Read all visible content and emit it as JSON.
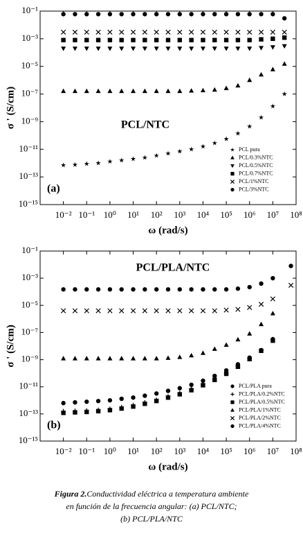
{
  "chart_data": [
    {
      "type": "scatter",
      "annotation": "PCL/NTC",
      "label": "(a)",
      "xlabel": "ω (rad/s)",
      "ylabel": "σ ' (S/cm)",
      "log_x": true,
      "log_y": true,
      "legend": "lower right",
      "xlim": [
        0.001,
        100000000
      ],
      "ylim": [
        1e-15,
        0.1
      ],
      "xticks": [
        {
          "value": 0.01,
          "label": "10⁻²"
        },
        {
          "value": 0.1,
          "label": "10⁻¹"
        },
        {
          "value": 1,
          "label": "10⁰"
        },
        {
          "value": 10,
          "label": "10¹"
        },
        {
          "value": 100,
          "label": "10²"
        },
        {
          "value": 1000,
          "label": "10³"
        },
        {
          "value": 10000,
          "label": "10⁴"
        },
        {
          "value": 100000,
          "label": "10⁵"
        },
        {
          "value": 1000000,
          "label": "10⁶"
        },
        {
          "value": 10000000,
          "label": "10⁷"
        },
        {
          "value": 100000000,
          "label": "10⁸"
        }
      ],
      "yticks": [
        {
          "value": 1e-15,
          "label": "10⁻¹⁵"
        },
        {
          "value": 1e-13,
          "label": "10⁻¹³"
        },
        {
          "value": 1e-11,
          "label": "10⁻¹¹"
        },
        {
          "value": 1e-09,
          "label": "10⁻⁹"
        },
        {
          "value": 1e-07,
          "label": "10⁻⁷"
        },
        {
          "value": 1e-05,
          "label": "10⁻⁵"
        },
        {
          "value": 0.001,
          "label": "10⁻³"
        },
        {
          "value": 0.1,
          "label": "10⁻¹"
        }
      ],
      "x": [
        0.01,
        0.0316,
        0.1,
        0.316,
        1,
        3.16,
        10,
        31.6,
        100,
        316,
        1000,
        3162,
        10000,
        31623,
        100000,
        316228,
        1000000,
        3162278,
        10000000,
        31622777
      ],
      "series": [
        {
          "name": "PCL pura",
          "marker": "star",
          "color": "#000000",
          "values": [
            7.1e-13,
            7.6e-13,
            8.9e-13,
            1e-12,
            1.3e-12,
            1.6e-12,
            2e-12,
            2.5e-12,
            3.5e-12,
            5e-12,
            7.1e-12,
            1e-11,
            1.6e-11,
            2.8e-11,
            5.6e-11,
            1.4e-10,
            4.5e-10,
            2e-09,
            1.3e-08,
            1e-07
          ]
        },
        {
          "name": "PCL/0.3%NTC",
          "marker": "triangle-up",
          "color": "#000000",
          "values": [
            1.6e-07,
            1.6e-07,
            1.6e-07,
            1.6e-07,
            1.6e-07,
            1.6e-07,
            1.6e-07,
            1.6e-07,
            1.6e-07,
            1.6e-07,
            1.6e-07,
            1.7e-07,
            1.8e-07,
            2e-07,
            2.6e-07,
            4e-07,
            1e-06,
            2.5e-06,
            6e-06,
            1.5e-05
          ]
        },
        {
          "name": "PCL/0.5%NTC",
          "marker": "triangle-down",
          "color": "#000000",
          "values": [
            0.0002,
            0.0002,
            0.0002,
            0.0002,
            0.0002,
            0.0002,
            0.0002,
            0.0002,
            0.0002,
            0.0002,
            0.0002,
            0.0002,
            0.0002,
            0.0002,
            0.0002,
            0.0002,
            0.0002,
            0.00022,
            0.00025,
            0.0003
          ]
        },
        {
          "name": "PCL/0.7%NTC",
          "marker": "square",
          "color": "#000000",
          "values": [
            0.0008,
            0.0008,
            0.0008,
            0.0008,
            0.0008,
            0.0008,
            0.0008,
            0.0008,
            0.0008,
            0.0008,
            0.0008,
            0.0008,
            0.0008,
            0.0008,
            0.0008,
            0.0008,
            0.0008,
            0.0009,
            0.001,
            0.0012
          ]
        },
        {
          "name": "PCL/1%NTC",
          "marker": "x",
          "color": "#000000",
          "values": [
            0.003,
            0.003,
            0.003,
            0.003,
            0.003,
            0.003,
            0.003,
            0.003,
            0.003,
            0.003,
            0.003,
            0.003,
            0.003,
            0.003,
            0.003,
            0.003,
            0.003,
            0.003,
            0.003,
            0.003
          ]
        },
        {
          "name": "PCL/3%NTC",
          "marker": "circle",
          "color": "#000000",
          "values": [
            0.06,
            0.06,
            0.06,
            0.06,
            0.06,
            0.06,
            0.06,
            0.06,
            0.06,
            0.06,
            0.06,
            0.06,
            0.06,
            0.06,
            0.06,
            0.06,
            0.06,
            0.06,
            0.06,
            0.03
          ]
        }
      ]
    },
    {
      "type": "scatter",
      "annotation": "PCL/PLA/NTC",
      "label": "(b)",
      "xlabel": "ω (rad/s)",
      "ylabel": "σ ' (S/cm)",
      "log_x": true,
      "log_y": true,
      "legend": "lower right",
      "xlim": [
        0.001,
        100000000
      ],
      "ylim": [
        1e-15,
        0.1
      ],
      "xticks": [
        {
          "value": 0.01,
          "label": "10⁻²"
        },
        {
          "value": 0.1,
          "label": "10⁻¹"
        },
        {
          "value": 1,
          "label": "10⁰"
        },
        {
          "value": 10,
          "label": "10¹"
        },
        {
          "value": 100,
          "label": "10²"
        },
        {
          "value": 1000,
          "label": "10³"
        },
        {
          "value": 10000,
          "label": "10⁴"
        },
        {
          "value": 100000,
          "label": "10⁵"
        },
        {
          "value": 1000000,
          "label": "10⁶"
        },
        {
          "value": 10000000,
          "label": "10⁷"
        },
        {
          "value": 100000000,
          "label": "10⁸"
        }
      ],
      "yticks": [
        {
          "value": 1e-15,
          "label": "10⁻¹⁵"
        },
        {
          "value": 1e-13,
          "label": "10⁻¹³"
        },
        {
          "value": 1e-11,
          "label": "10⁻¹¹"
        },
        {
          "value": 1e-09,
          "label": "10⁻⁹"
        },
        {
          "value": 1e-07,
          "label": "10⁻⁷"
        },
        {
          "value": 1e-05,
          "label": "10⁻⁵"
        },
        {
          "value": 0.001,
          "label": "10⁻³"
        },
        {
          "value": 0.1,
          "label": "10⁻¹"
        }
      ],
      "x": [
        0.01,
        0.0316,
        0.1,
        0.316,
        1,
        3.16,
        10,
        31.6,
        100,
        316,
        1000,
        3162,
        10000,
        31623,
        100000,
        316228,
        1000000,
        3162278,
        10000000,
        60000000
      ],
      "series": [
        {
          "name": "PCL/PLA pura",
          "marker": "circle",
          "color": "#000000",
          "values": [
            6.3e-13,
            7.1e-13,
            7.9e-13,
            8.9e-13,
            1e-12,
            1.3e-12,
            1.6e-12,
            2.2e-12,
            3.2e-12,
            5e-12,
            7.9e-12,
            1.4e-11,
            2.8e-11,
            6.3e-11,
            1.6e-10,
            4.5e-10,
            1.4e-09,
            5e-09,
            3.2e-08,
            null
          ]
        },
        {
          "name": "PCL/PLA/0.2%NTC",
          "marker": "plus",
          "color": "#000000",
          "values": [
            1.6e-13,
            1.7e-13,
            1.8e-13,
            2e-13,
            2.4e-13,
            3.2e-13,
            4.5e-13,
            7.1e-13,
            1.1e-12,
            2e-12,
            3.5e-12,
            7.1e-12,
            1.6e-11,
            4e-11,
            1.1e-10,
            3.5e-10,
            1.3e-09,
            5e-09,
            3.2e-08,
            null
          ]
        },
        {
          "name": "PCL/PLA/0.5%NTC",
          "marker": "square",
          "color": "#000000",
          "values": [
            1.2e-13,
            1.3e-13,
            1.4e-13,
            1.6e-13,
            1.9e-13,
            2.5e-13,
            3.5e-13,
            5.6e-13,
            9e-13,
            1.6e-12,
            2.8e-12,
            5.6e-12,
            1.3e-11,
            3.2e-11,
            9e-11,
            3e-10,
            1.1e-09,
            4.5e-09,
            2.5e-08,
            null
          ]
        },
        {
          "name": "PCL/PLA/1%NTC",
          "marker": "triangle-up",
          "color": "#000000",
          "values": [
            1.2e-09,
            1.2e-09,
            1.2e-09,
            1.2e-09,
            1.2e-09,
            1.2e-09,
            1.2e-09,
            1.2e-09,
            1.2e-09,
            1.3e-09,
            1.5e-09,
            2e-09,
            3e-09,
            6e-09,
            1.2e-08,
            3e-08,
            8e-08,
            4e-07,
            2.5e-06,
            null
          ]
        },
        {
          "name": "PCL/PLA/2%NTC",
          "marker": "x",
          "color": "#000000",
          "values": [
            4e-06,
            4e-06,
            4e-06,
            4e-06,
            4e-06,
            4e-06,
            4e-06,
            4e-06,
            4e-06,
            4e-06,
            4e-06,
            4e-06,
            4e-06,
            4e-06,
            4.5e-06,
            5e-06,
            7e-06,
            1.2e-05,
            3e-05,
            0.0003
          ]
        },
        {
          "name": "PCL/PLA/4%NTC",
          "marker": "circle",
          "color": "#000000",
          "values": [
            0.00015,
            0.00015,
            0.00015,
            0.00015,
            0.00015,
            0.00015,
            0.00015,
            0.00015,
            0.00015,
            0.00015,
            0.00015,
            0.00015,
            0.00015,
            0.00015,
            0.00015,
            0.00017,
            0.00022,
            0.0004,
            0.001,
            0.008
          ]
        }
      ]
    }
  ],
  "caption": {
    "label": "Figura 2.",
    "lines": [
      "Conductividad eléctrica a temperatura ambiente",
      "en función de la frecuencia angular: (a)  PCL/NTC;",
      "(b) PCL/PLA/NTC"
    ]
  }
}
